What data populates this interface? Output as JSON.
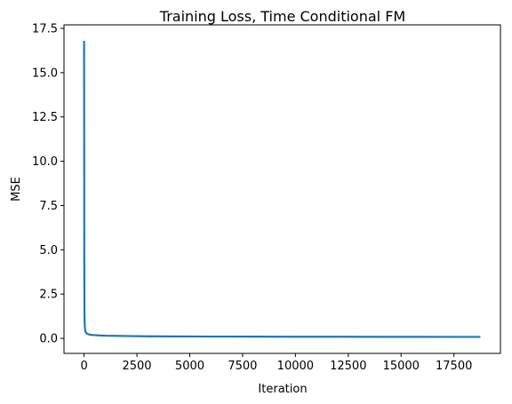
{
  "chart_data": {
    "type": "line",
    "title": "Training Loss, Time Conditional FM",
    "xlabel": "Iteration",
    "ylabel": "MSE",
    "xlim": [
      -950,
      19700
    ],
    "ylim": [
      -0.85,
      17.7
    ],
    "xticks": [
      0,
      2500,
      5000,
      7500,
      10000,
      12500,
      15000,
      17500
    ],
    "xtick_labels": [
      "0",
      "2500",
      "5000",
      "7500",
      "10000",
      "12500",
      "15000",
      "17500"
    ],
    "yticks": [
      0.0,
      2.5,
      5.0,
      7.5,
      10.0,
      12.5,
      15.0,
      17.5
    ],
    "ytick_labels": [
      "0.0",
      "2.5",
      "5.0",
      "7.5",
      "10.0",
      "12.5",
      "15.0",
      "17.5"
    ],
    "grid": false,
    "series": [
      {
        "color": "#1f77b4",
        "x": [
          0,
          5,
          10,
          20,
          40,
          60,
          100,
          150,
          200,
          300,
          500,
          800,
          1000,
          1500,
          2000,
          2500,
          3000,
          4000,
          5000,
          6000,
          8000,
          10000,
          12000,
          14000,
          16000,
          18000,
          18750
        ],
        "y": [
          16.8,
          12.0,
          4.0,
          1.2,
          0.55,
          0.4,
          0.3,
          0.26,
          0.23,
          0.2,
          0.18,
          0.16,
          0.15,
          0.14,
          0.13,
          0.12,
          0.115,
          0.11,
          0.105,
          0.1,
          0.095,
          0.09,
          0.09,
          0.085,
          0.085,
          0.08,
          0.08
        ]
      }
    ]
  }
}
